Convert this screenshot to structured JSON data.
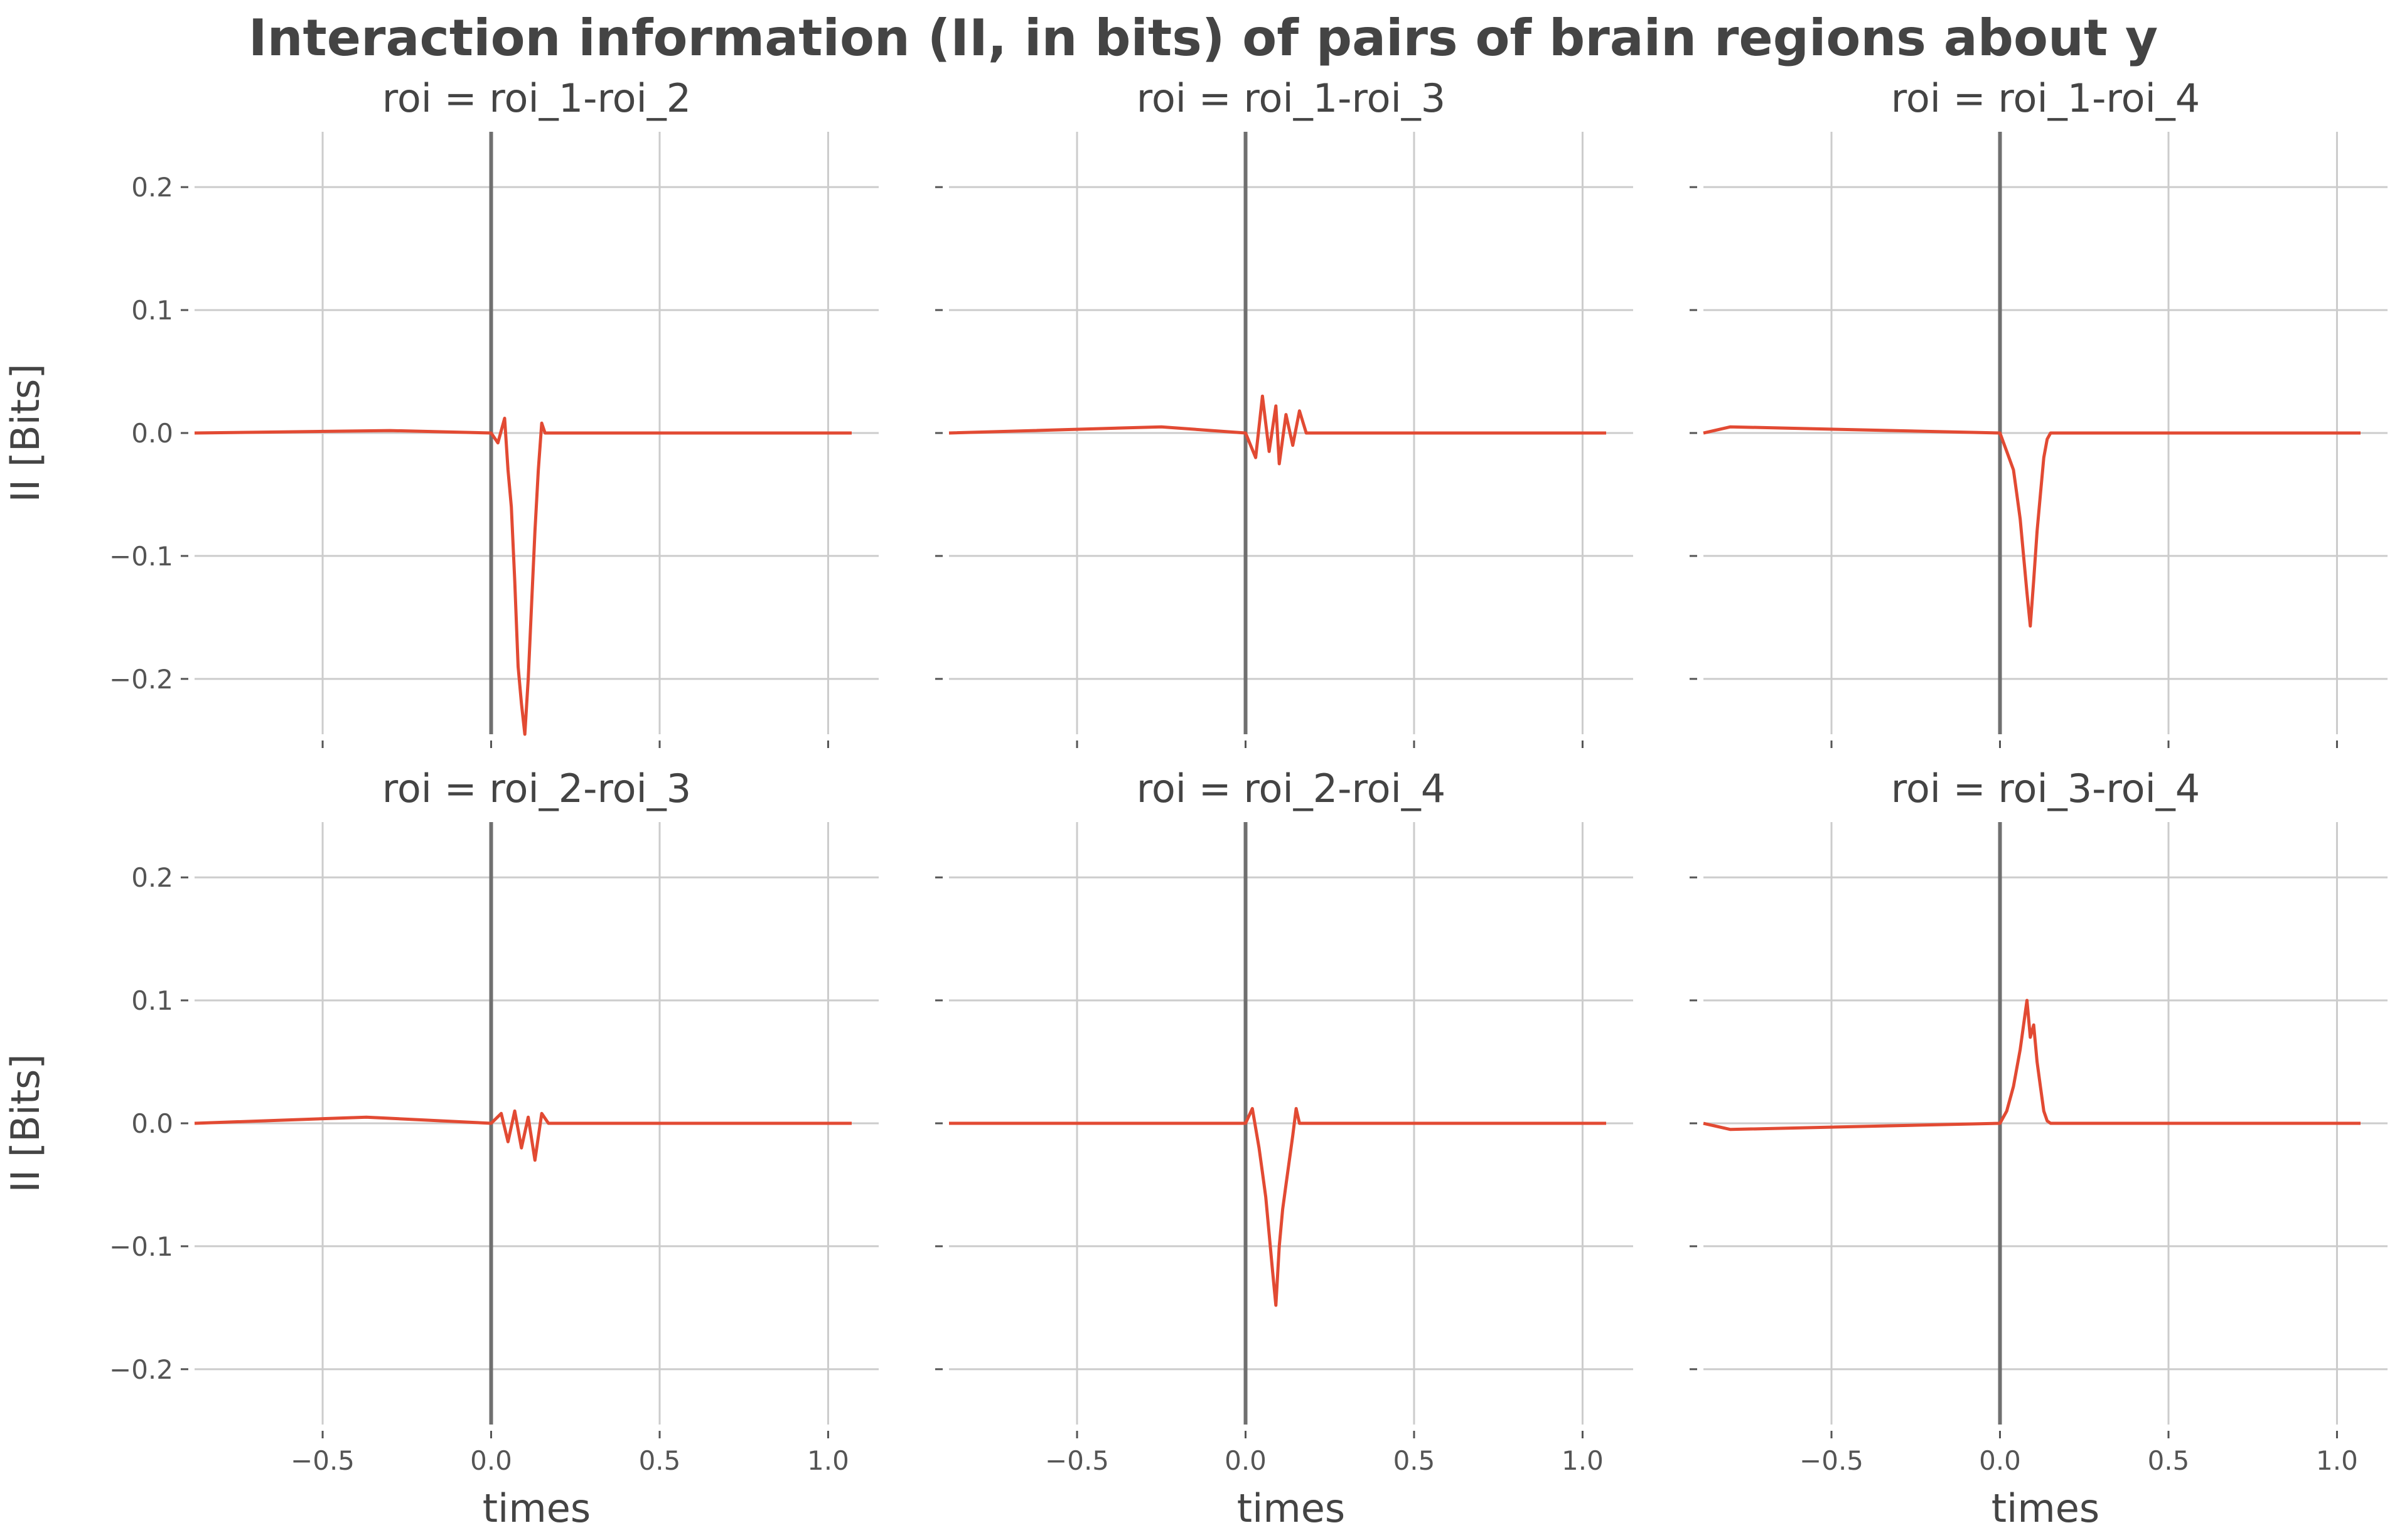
{
  "figure": {
    "title": "Interaction information (II, in bits) of pairs of brain regions about y",
    "colors": {
      "series": "#e24a33",
      "grid": "#cccccc",
      "zero_line": "#707070",
      "text": "#444444"
    }
  },
  "chart_data": [
    {
      "type": "line",
      "title": "roi = roi_1-roi_2",
      "xlabel": "",
      "ylabel": "II [Bits]",
      "xlim": [
        -0.88,
        1.15
      ],
      "ylim": [
        -0.245,
        0.245
      ],
      "xticks": [],
      "yticks": [
        "0.2",
        "0.1",
        "0.0",
        "−0.1",
        "−0.2"
      ],
      "grid": true,
      "vline_x": 0,
      "series": [
        {
          "x": [
            -0.88,
            -0.3,
            0.0,
            0.02,
            0.04,
            0.05,
            0.06,
            0.07,
            0.08,
            0.09,
            0.1,
            0.11,
            0.12,
            0.13,
            0.14,
            0.15,
            0.16,
            1.07
          ],
          "y": [
            0.0,
            0.002,
            0.0,
            -0.008,
            0.012,
            -0.03,
            -0.06,
            -0.12,
            -0.19,
            -0.22,
            -0.245,
            -0.2,
            -0.14,
            -0.08,
            -0.03,
            0.008,
            0.0,
            0.0
          ]
        }
      ]
    },
    {
      "type": "line",
      "title": "roi = roi_1-roi_3",
      "xlabel": "",
      "ylabel": "",
      "xlim": [
        -0.88,
        1.15
      ],
      "ylim": [
        -0.245,
        0.245
      ],
      "xticks": [],
      "yticks": [],
      "grid": true,
      "vline_x": 0,
      "series": [
        {
          "x": [
            -0.88,
            -0.25,
            0.0,
            0.03,
            0.05,
            0.07,
            0.09,
            0.1,
            0.12,
            0.14,
            0.16,
            0.18,
            1.07
          ],
          "y": [
            0.0,
            0.005,
            0.0,
            -0.02,
            0.03,
            -0.015,
            0.022,
            -0.025,
            0.015,
            -0.01,
            0.018,
            0.0,
            0.0
          ]
        }
      ]
    },
    {
      "type": "line",
      "title": "roi = roi_1-roi_4",
      "xlabel": "",
      "ylabel": "",
      "xlim": [
        -0.88,
        1.15
      ],
      "ylim": [
        -0.245,
        0.245
      ],
      "xticks": [],
      "yticks": [],
      "grid": true,
      "vline_x": 0,
      "series": [
        {
          "x": [
            -0.88,
            -0.8,
            0.0,
            0.02,
            0.04,
            0.05,
            0.06,
            0.07,
            0.08,
            0.09,
            0.1,
            0.11,
            0.12,
            0.13,
            0.14,
            0.15,
            1.07
          ],
          "y": [
            0.0,
            0.005,
            0.0,
            -0.015,
            -0.03,
            -0.05,
            -0.07,
            -0.1,
            -0.13,
            -0.157,
            -0.12,
            -0.08,
            -0.05,
            -0.02,
            -0.005,
            0.0,
            0.0
          ]
        }
      ]
    },
    {
      "type": "line",
      "title": "roi = roi_2-roi_3",
      "xlabel": "times",
      "ylabel": "II [Bits]",
      "xlim": [
        -0.88,
        1.15
      ],
      "ylim": [
        -0.245,
        0.245
      ],
      "xticks": [
        "−0.5",
        "0.0",
        "0.5",
        "1.0"
      ],
      "yticks": [
        "0.2",
        "0.1",
        "0.0",
        "−0.1",
        "−0.2"
      ],
      "grid": true,
      "vline_x": 0,
      "series": [
        {
          "x": [
            -0.88,
            -0.37,
            0.0,
            0.03,
            0.05,
            0.07,
            0.09,
            0.11,
            0.13,
            0.15,
            0.17,
            1.07
          ],
          "y": [
            0.0,
            0.005,
            0.0,
            0.008,
            -0.015,
            0.01,
            -0.02,
            0.005,
            -0.03,
            0.008,
            0.0,
            0.0
          ]
        }
      ]
    },
    {
      "type": "line",
      "title": "roi = roi_2-roi_4",
      "xlabel": "times",
      "ylabel": "",
      "xlim": [
        -0.88,
        1.15
      ],
      "ylim": [
        -0.245,
        0.245
      ],
      "xticks": [
        "−0.5",
        "0.0",
        "0.5",
        "1.0"
      ],
      "yticks": [],
      "grid": true,
      "vline_x": 0,
      "series": [
        {
          "x": [
            -0.88,
            0.0,
            0.02,
            0.04,
            0.05,
            0.06,
            0.07,
            0.08,
            0.09,
            0.1,
            0.11,
            0.12,
            0.13,
            0.14,
            0.15,
            0.16,
            1.07
          ],
          "y": [
            0.0,
            0.0,
            0.012,
            -0.02,
            -0.04,
            -0.06,
            -0.09,
            -0.12,
            -0.148,
            -0.1,
            -0.07,
            -0.05,
            -0.03,
            -0.01,
            0.012,
            0.0,
            0.0
          ]
        }
      ]
    },
    {
      "type": "line",
      "title": "roi = roi_3-roi_4",
      "xlabel": "times",
      "ylabel": "",
      "xlim": [
        -0.88,
        1.15
      ],
      "ylim": [
        -0.245,
        0.245
      ],
      "xticks": [
        "−0.5",
        "0.0",
        "0.5",
        "1.0"
      ],
      "yticks": [],
      "grid": true,
      "vline_x": 0,
      "series": [
        {
          "x": [
            -0.88,
            -0.8,
            0.0,
            0.02,
            0.04,
            0.06,
            0.07,
            0.08,
            0.09,
            0.1,
            0.11,
            0.12,
            0.13,
            0.14,
            0.15,
            1.07
          ],
          "y": [
            0.0,
            -0.005,
            0.0,
            0.01,
            0.03,
            0.06,
            0.08,
            0.1,
            0.07,
            0.08,
            0.05,
            0.03,
            0.01,
            0.002,
            0.0,
            0.0
          ]
        }
      ]
    }
  ]
}
